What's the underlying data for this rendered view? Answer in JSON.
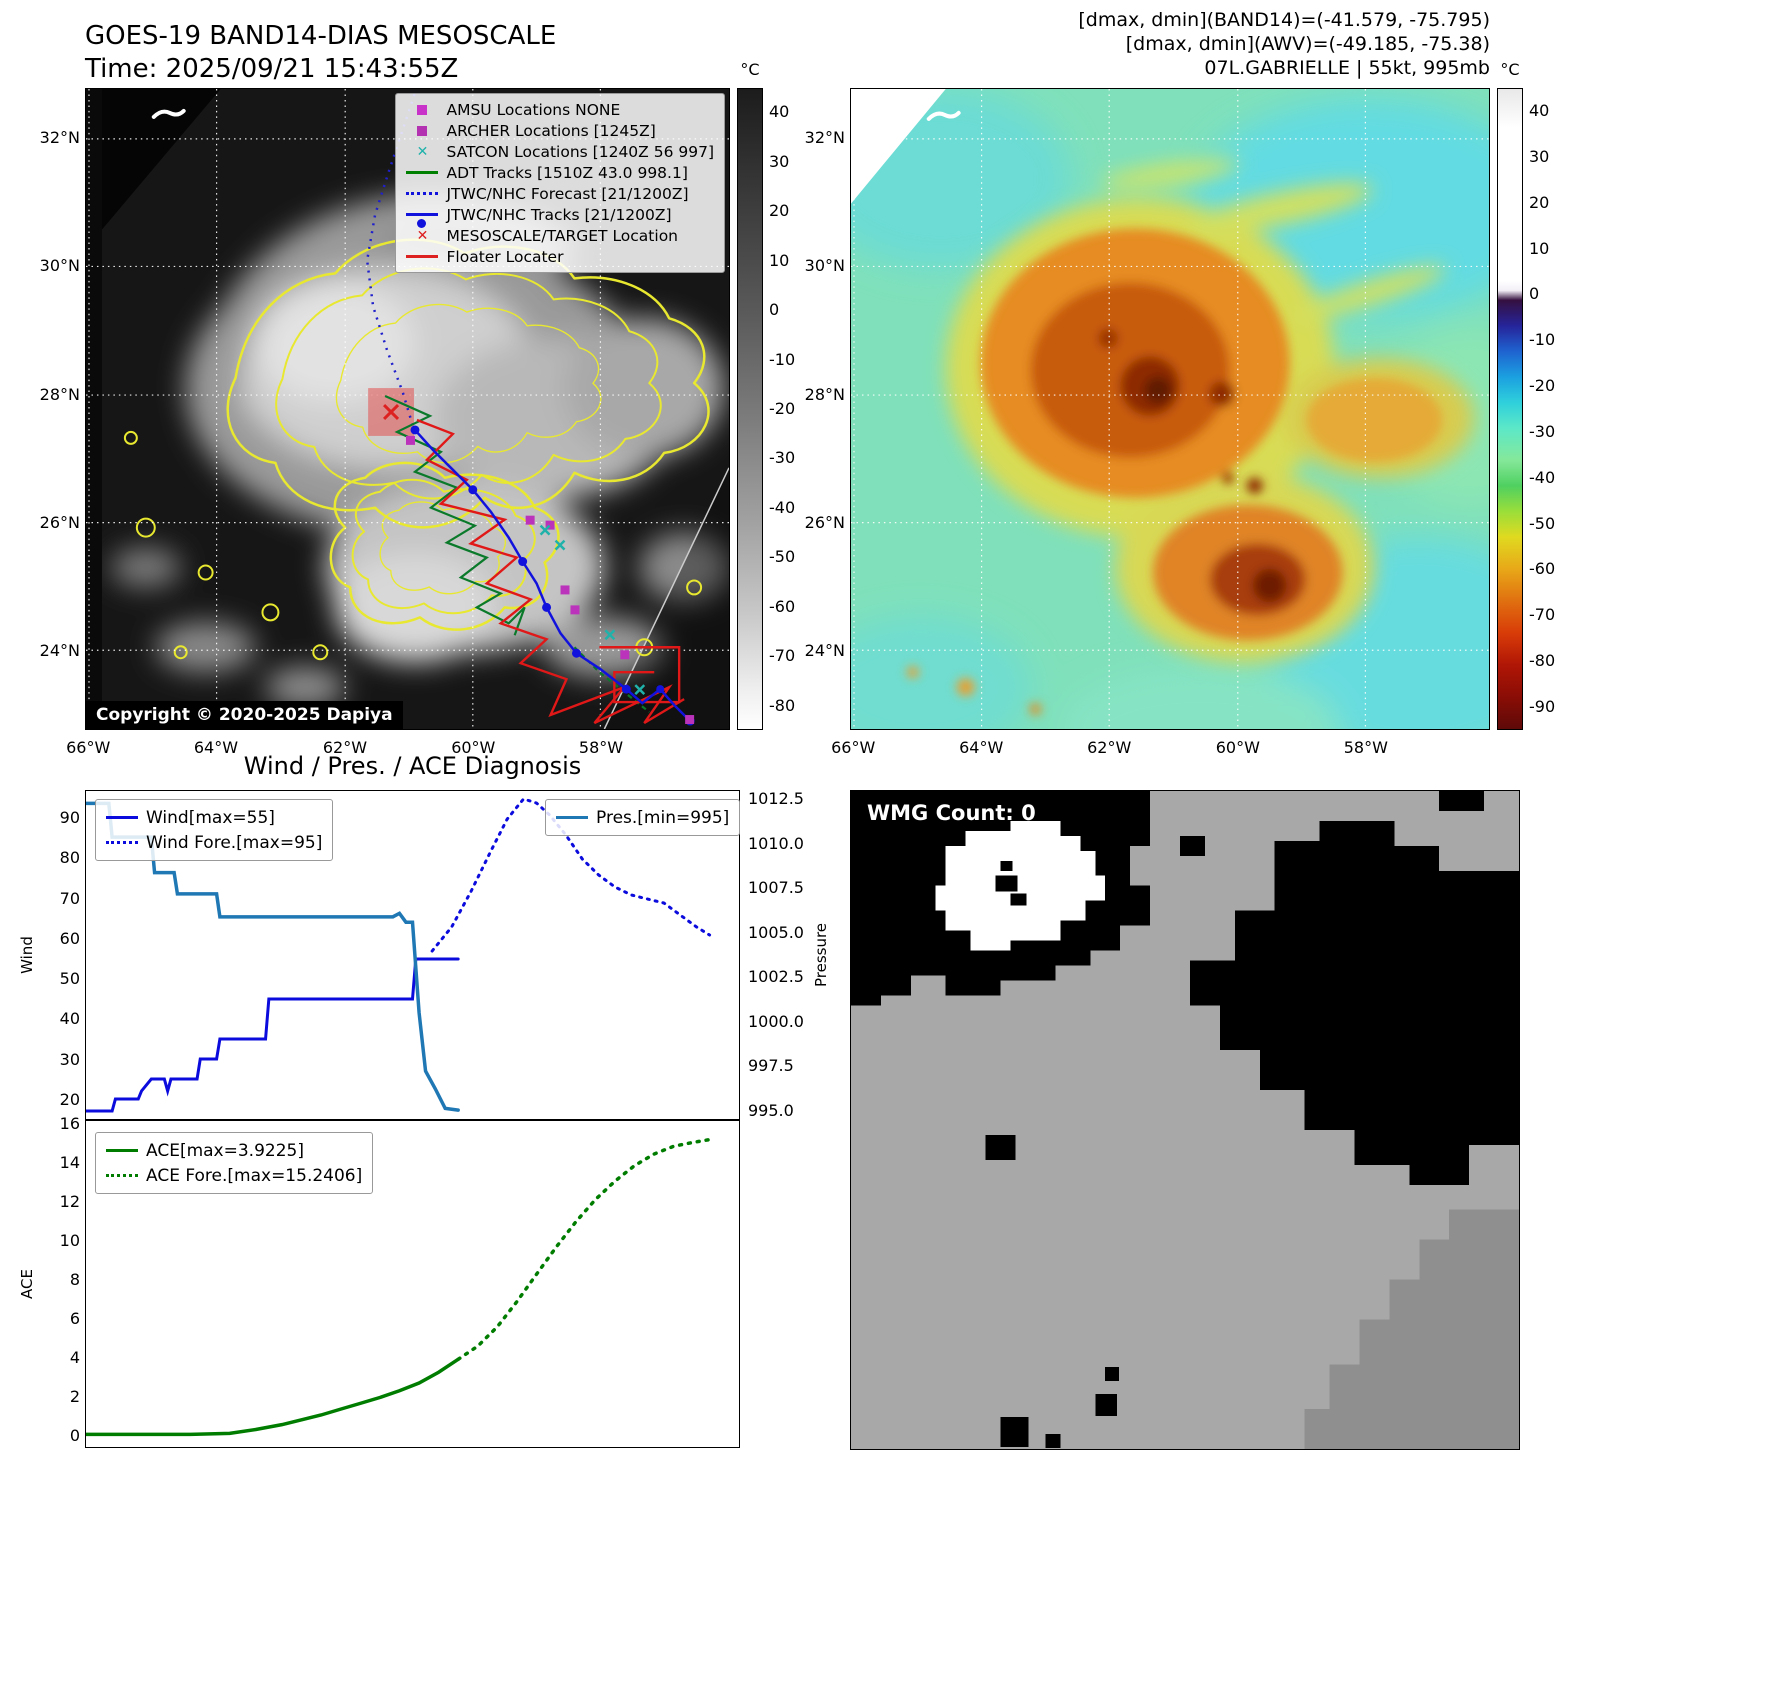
{
  "panel_band14": {
    "title_line1": "GOES-19 BAND14-DIAS MESOSCALE",
    "title_line2": "Time: 2025/09/21 15:43:55Z",
    "copyright": "Copyright © 2020-2025 Dapiya",
    "colorbar_unit": "°C",
    "colorbar_ticks": [
      "40",
      "30",
      "20",
      "10",
      "0",
      "-10",
      "-20",
      "-30",
      "-40",
      "-50",
      "-60",
      "-70",
      "-80"
    ],
    "lat_ticks": [
      "32°N",
      "30°N",
      "28°N",
      "26°N",
      "24°N"
    ],
    "lon_ticks": [
      "66°W",
      "64°W",
      "62°W",
      "60°W",
      "58°W"
    ],
    "legend": [
      {
        "label": "AMSU Locations NONE",
        "marker": "square",
        "color": "#c832c8"
      },
      {
        "label": "ARCHER Locations [1245Z]",
        "marker": "square",
        "color": "#b232b2"
      },
      {
        "label": "SATCON Locations [1240Z 56 997]",
        "marker": "x",
        "color": "#20b2aa"
      },
      {
        "label": "ADT Tracks [1510Z 43.0 998.1]",
        "marker": "line",
        "color": "#008000"
      },
      {
        "label": "JTWC/NHC Forecast [21/1200Z]",
        "marker": "dotted",
        "color": "#1212dd"
      },
      {
        "label": "JTWC/NHC Tracks [21/1200Z]",
        "marker": "line-dot",
        "color": "#1212dd"
      },
      {
        "label": "MESOSCALE/TARGET Location",
        "marker": "x",
        "color": "#dd2020"
      },
      {
        "label": "Floater Locater",
        "marker": "line",
        "color": "#dd2020"
      }
    ]
  },
  "panel_awv": {
    "title_line1": "[dmax, dmin](BAND14)=(-41.579, -75.795)",
    "title_line2": "[dmax, dmin](AWV)=(-49.185, -75.38)",
    "title_line3": "07L.GABRIELLE | 55kt, 995mb",
    "colorbar_unit": "°C",
    "colorbar_ticks": [
      "40",
      "30",
      "20",
      "10",
      "0",
      "-10",
      "-20",
      "-30",
      "-40",
      "-50",
      "-60",
      "-70",
      "-80",
      "-90"
    ],
    "lat_ticks": [
      "32°N",
      "30°N",
      "28°N",
      "26°N",
      "24°N"
    ],
    "lon_ticks": [
      "66°W",
      "64°W",
      "62°W",
      "60°W",
      "58°W"
    ]
  },
  "panel_diagnosis": {
    "title": "Wind / Pres. / ACE Diagnosis",
    "wind_axis_label": "Wind",
    "pressure_axis_label": "Pressure",
    "ace_axis_label": "ACE",
    "legend_boxes": [
      {
        "target": "lg-wind",
        "chart": 0,
        "series": [
          0,
          1
        ]
      },
      {
        "target": "lg-pres",
        "chart": 0,
        "series": [
          2
        ]
      },
      {
        "target": "lg-ace",
        "chart": 1,
        "series": [
          0,
          1
        ]
      }
    ]
  },
  "panel_wmg": {
    "label": "WMG Count: 0"
  },
  "chart_data": [
    {
      "type": "line",
      "name": "wind_pressure_diagnosis",
      "xlim": [
        0,
        1
      ],
      "grid": false,
      "axes": {
        "wind": {
          "side": "left",
          "label": "Wind",
          "ylim": [
            15,
            97
          ],
          "tick_values": [
            90,
            80,
            70,
            60,
            50,
            40,
            30,
            20
          ],
          "ticks": [
            "90",
            "80",
            "70",
            "60",
            "50",
            "40",
            "30",
            "20"
          ]
        },
        "pressure": {
          "side": "right",
          "label": "Pressure",
          "ylim": [
            994.5,
            1013.0
          ],
          "tick_values": [
            1012.5,
            1010.0,
            1007.5,
            1005.0,
            1002.5,
            1000.0,
            997.5,
            995.0
          ],
          "ticks": [
            "1012.5",
            "1010.0",
            "1007.5",
            "1005.0",
            "1002.5",
            "1000.0",
            "997.5",
            "995.0"
          ]
        }
      },
      "series": [
        {
          "label": "Wind[max=55]",
          "axis": "wind",
          "color": "#0b0bdd",
          "lw": 3,
          "dash": null,
          "x": [
            0,
            0.04,
            0.045,
            0.08,
            0.085,
            0.1,
            0.12,
            0.125,
            0.13,
            0.17,
            0.175,
            0.2,
            0.205,
            0.275,
            0.28,
            0.5,
            0.505,
            0.57
          ],
          "values": [
            17,
            17,
            20,
            20,
            22,
            25,
            25,
            22,
            25,
            25,
            30,
            30,
            35,
            35,
            45,
            45,
            55,
            55
          ]
        },
        {
          "label": "Wind Fore.[max=95]",
          "axis": "wind",
          "color": "#0b0bdd",
          "lw": 3,
          "dash": "2 6",
          "x": [
            0.53,
            0.56,
            0.59,
            0.62,
            0.645,
            0.67,
            0.69,
            0.71,
            0.735,
            0.76,
            0.785,
            0.81,
            0.835,
            0.86,
            0.885,
            0.91,
            0.935,
            0.955
          ],
          "values": [
            57,
            63,
            72,
            82,
            90,
            95,
            94,
            91,
            86,
            80,
            76,
            73,
            71,
            70,
            69,
            66,
            63,
            61
          ]
        },
        {
          "label": "Pres.[min=995]",
          "axis": "pressure",
          "color": "#1f77b4",
          "lw": 3.5,
          "dash": null,
          "x": [
            0,
            0.035,
            0.04,
            0.1,
            0.105,
            0.135,
            0.14,
            0.2,
            0.205,
            0.47,
            0.48,
            0.49,
            0.5,
            0.51,
            0.52,
            0.535,
            0.55,
            0.57
          ],
          "values": [
            1012.3,
            1012.3,
            1010.4,
            1010.4,
            1008.4,
            1008.4,
            1007.2,
            1007.2,
            1005.9,
            1005.9,
            1006.1,
            1005.6,
            1005.6,
            1000.5,
            997.2,
            996.2,
            995.1,
            995.0
          ]
        }
      ]
    },
    {
      "type": "line",
      "name": "ace_diagnosis",
      "xlim": [
        0,
        1
      ],
      "grid": false,
      "axes": {
        "ace": {
          "side": "left",
          "label": "ACE",
          "ylim": [
            -0.6,
            16.2
          ],
          "tick_values": [
            16,
            14,
            12,
            10,
            8,
            6,
            4,
            2,
            0
          ],
          "ticks": [
            "16",
            "14",
            "12",
            "10",
            "8",
            "6",
            "4",
            "2",
            "0"
          ]
        }
      },
      "series": [
        {
          "label": "ACE[max=3.9225]",
          "axis": "ace",
          "color": "#007d00",
          "lw": 3.5,
          "dash": null,
          "x": [
            0,
            0.08,
            0.16,
            0.22,
            0.26,
            0.3,
            0.33,
            0.36,
            0.39,
            0.42,
            0.45,
            0.48,
            0.51,
            0.54,
            0.57
          ],
          "values": [
            0.05,
            0.05,
            0.05,
            0.1,
            0.3,
            0.55,
            0.8,
            1.05,
            1.35,
            1.65,
            1.95,
            2.3,
            2.7,
            3.25,
            3.92
          ]
        },
        {
          "label": "ACE Fore.[max=15.2406]",
          "axis": "ace",
          "color": "#007d00",
          "lw": 3.5,
          "dash": "2 7",
          "x": [
            0.57,
            0.6,
            0.63,
            0.66,
            0.69,
            0.72,
            0.75,
            0.78,
            0.81,
            0.84,
            0.87,
            0.9,
            0.93,
            0.955
          ],
          "values": [
            3.92,
            4.6,
            5.6,
            6.9,
            8.3,
            9.7,
            11.0,
            12.15,
            13.1,
            13.9,
            14.5,
            14.9,
            15.1,
            15.24
          ]
        }
      ]
    }
  ]
}
